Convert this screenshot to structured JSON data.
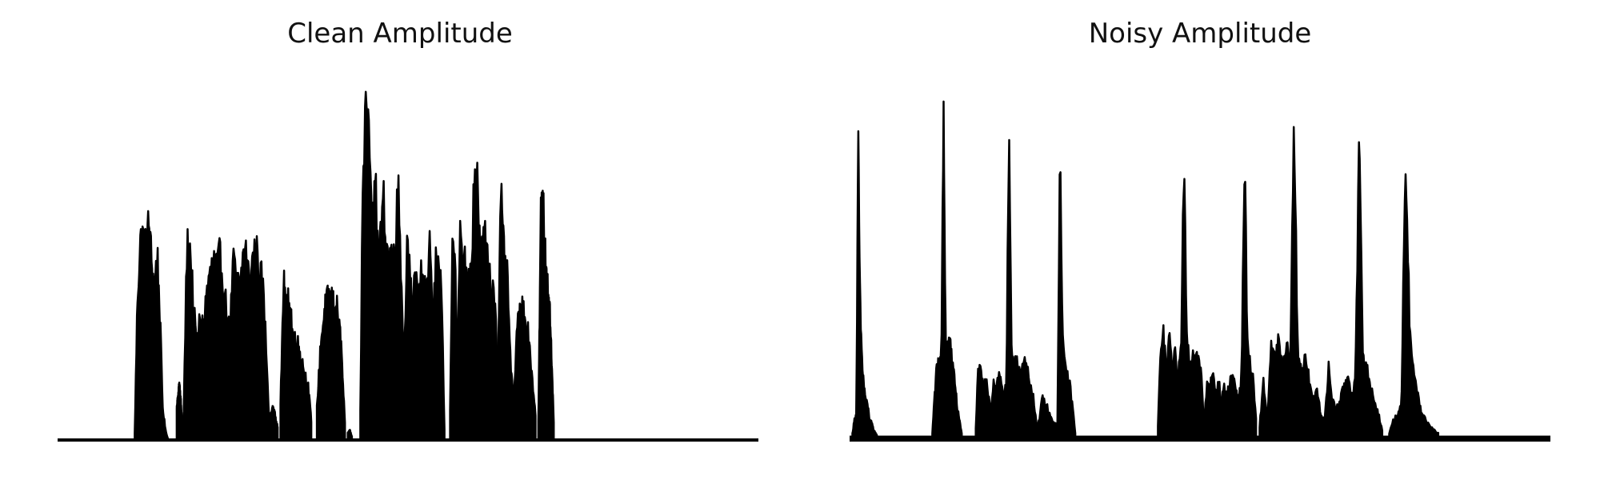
{
  "chart_data": [
    {
      "type": "area",
      "title": "Clean Amplitude",
      "x_range": [
        0,
        1
      ],
      "ylim": [
        0,
        1
      ],
      "axes_visible": false,
      "grid": false,
      "fill_color": "#000000",
      "segments": [
        {
          "start": 0.11,
          "end": 0.158,
          "values": [
            0.02,
            0.44,
            0.6,
            0.62,
            0.58,
            0.66,
            0.55,
            0.45,
            0.58,
            0.38,
            0.1,
            0.03,
            0.0
          ]
        },
        {
          "start": 0.17,
          "end": 0.178,
          "values": [
            0.1,
            0.17,
            0.05
          ]
        },
        {
          "start": 0.18,
          "end": 0.302,
          "values": [
            0.1,
            0.6,
            0.58,
            0.4,
            0.28,
            0.38,
            0.34,
            0.46,
            0.5,
            0.55,
            0.52,
            0.56,
            0.48,
            0.4,
            0.32,
            0.54,
            0.5,
            0.46,
            0.56,
            0.58,
            0.47,
            0.56,
            0.58,
            0.52,
            0.48,
            0.3,
            0.06
          ]
        },
        {
          "start": 0.295,
          "end": 0.314,
          "values": [
            0.08,
            0.06,
            0.1,
            0.04
          ]
        },
        {
          "start": 0.318,
          "end": 0.362,
          "values": [
            0.1,
            0.48,
            0.4,
            0.44,
            0.32,
            0.31,
            0.28,
            0.24,
            0.2,
            0.16,
            0.06
          ]
        },
        {
          "start": 0.37,
          "end": 0.41,
          "values": [
            0.1,
            0.3,
            0.4,
            0.44,
            0.42,
            0.4,
            0.3,
            0.05
          ]
        },
        {
          "start": 0.414,
          "end": 0.42,
          "values": [
            0.02,
            0.03,
            0.01
          ]
        },
        {
          "start": 0.432,
          "end": 0.552,
          "values": [
            0.1,
            0.9,
            0.98,
            0.96,
            0.6,
            0.84,
            0.55,
            0.62,
            0.72,
            0.58,
            0.55,
            0.56,
            0.57,
            0.78,
            0.5,
            0.2,
            0.58,
            0.57,
            0.4,
            0.5,
            0.42,
            0.56,
            0.48,
            0.46,
            0.6,
            0.32,
            0.58,
            0.5,
            0.46,
            0.03
          ]
        },
        {
          "start": 0.56,
          "end": 0.63,
          "values": [
            0.1,
            0.58,
            0.56,
            0.24,
            0.66,
            0.58,
            0.55,
            0.46,
            0.5,
            0.6,
            0.86,
            0.8,
            0.6,
            0.58,
            0.62,
            0.6,
            0.5,
            0.46,
            0.48,
            0.3,
            0.06
          ]
        },
        {
          "start": 0.628,
          "end": 0.682,
          "values": [
            0.2,
            0.74,
            0.56,
            0.5,
            0.26,
            0.1,
            0.33,
            0.38,
            0.42,
            0.36,
            0.3,
            0.18,
            0.08
          ]
        },
        {
          "start": 0.686,
          "end": 0.708,
          "values": [
            0.06,
            0.7,
            0.68,
            0.5,
            0.45,
            0.3,
            0.05
          ]
        }
      ]
    },
    {
      "type": "area",
      "title": "Noisy Amplitude",
      "x_range": [
        0,
        1
      ],
      "ylim": [
        0,
        1
      ],
      "axes_visible": false,
      "grid": false,
      "fill_color": "#000000",
      "baseline_noise_level": 0.012,
      "segments": [
        {
          "start": 0.004,
          "end": 0.04,
          "values": [
            0.02,
            0.06,
            0.08,
            0.88,
            0.4,
            0.24,
            0.16,
            0.12,
            0.1,
            0.06,
            0.05,
            0.03,
            0.02,
            0.01
          ]
        },
        {
          "start": 0.118,
          "end": 0.16,
          "values": [
            0.02,
            0.14,
            0.22,
            0.24,
            0.26,
            0.98,
            0.26,
            0.3,
            0.28,
            0.24,
            0.18,
            0.1,
            0.06,
            0.02
          ]
        },
        {
          "start": 0.18,
          "end": 0.322,
          "values": [
            0.04,
            0.22,
            0.2,
            0.16,
            0.18,
            0.14,
            0.1,
            0.18,
            0.16,
            0.2,
            0.18,
            0.14,
            0.16,
            0.9,
            0.28,
            0.24,
            0.26,
            0.22,
            0.2,
            0.24,
            0.22,
            0.18,
            0.16,
            0.1,
            0.04,
            0.06,
            0.14,
            0.12,
            0.1,
            0.08,
            0.06,
            0.05,
            0.04,
            0.9,
            0.3,
            0.22,
            0.2,
            0.16,
            0.1,
            0.02
          ]
        },
        {
          "start": 0.44,
          "end": 0.58,
          "values": [
            0.04,
            0.3,
            0.32,
            0.2,
            0.32,
            0.22,
            0.26,
            0.2,
            0.28,
            0.82,
            0.34,
            0.22,
            0.28,
            0.26,
            0.24,
            0.2,
            0.04,
            0.18,
            0.16,
            0.2,
            0.14,
            0.18,
            0.12,
            0.16,
            0.14,
            0.18,
            0.2,
            0.16,
            0.12,
            0.2,
            0.88,
            0.3,
            0.22,
            0.18,
            0.06
          ]
        },
        {
          "start": 0.585,
          "end": 0.76,
          "values": [
            0.04,
            0.18,
            0.06,
            0.28,
            0.24,
            0.3,
            0.22,
            0.28,
            0.24,
            0.96,
            0.26,
            0.22,
            0.24,
            0.18,
            0.12,
            0.16,
            0.08,
            0.06,
            0.22,
            0.12,
            0.1,
            0.12,
            0.16,
            0.2,
            0.14,
            0.18,
            0.88,
            0.26,
            0.22,
            0.16,
            0.12,
            0.08,
            0.03
          ]
        },
        {
          "start": 0.77,
          "end": 0.84,
          "values": [
            0.02,
            0.06,
            0.08,
            0.1,
            0.88,
            0.36,
            0.2,
            0.14,
            0.08,
            0.06,
            0.04,
            0.03,
            0.02
          ]
        }
      ]
    }
  ]
}
